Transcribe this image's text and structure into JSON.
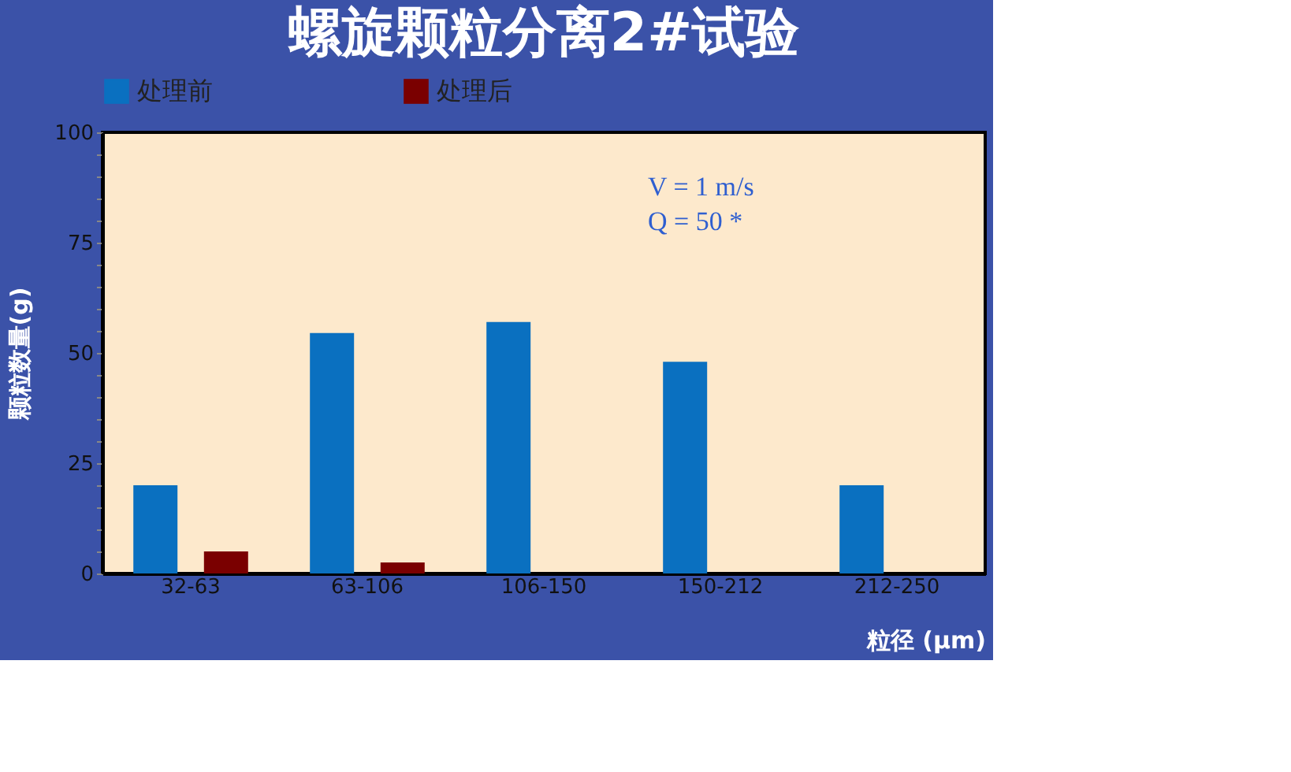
{
  "chart_data": {
    "type": "bar",
    "title": "螺旋颗粒分离2#试验",
    "ylabel": "颗粒数量(g)",
    "xlabel": "粒径 (μm)",
    "categories": [
      "32-63",
      "63-106",
      "106-150",
      "150-212",
      "212-250"
    ],
    "series": [
      {
        "name": "处理前",
        "color": "#0a70c0",
        "values": [
          20,
          54.5,
          57,
          48,
          20
        ]
      },
      {
        "name": "处理后",
        "color": "#7a0000",
        "values": [
          5,
          2.5,
          null,
          null,
          null
        ]
      }
    ],
    "ylim": [
      0,
      100
    ],
    "yticks": [
      0,
      {
        "value": 5,
        "label": null
      },
      {
        "value": 10,
        "label": null
      },
      {
        "value": 15,
        "label": null
      },
      {
        "value": 20,
        "label": null
      },
      25,
      {
        "value": 30,
        "label": null
      },
      {
        "value": 35,
        "label": null
      },
      {
        "value": 40,
        "label": null
      },
      {
        "value": 45,
        "label": null
      },
      50,
      {
        "value": 55,
        "label": null
      },
      {
        "value": 60,
        "label": null
      },
      {
        "value": 65,
        "label": null
      },
      {
        "value": 70,
        "label": null
      },
      75,
      {
        "value": 80,
        "label": null
      },
      {
        "value": 85,
        "label": null
      },
      {
        "value": 90,
        "label": null
      },
      {
        "value": 95,
        "label": null
      },
      100
    ],
    "annotations": [
      "V = 1 m/s",
      "Q = 50 *"
    ],
    "legend": "top",
    "grid": false
  }
}
